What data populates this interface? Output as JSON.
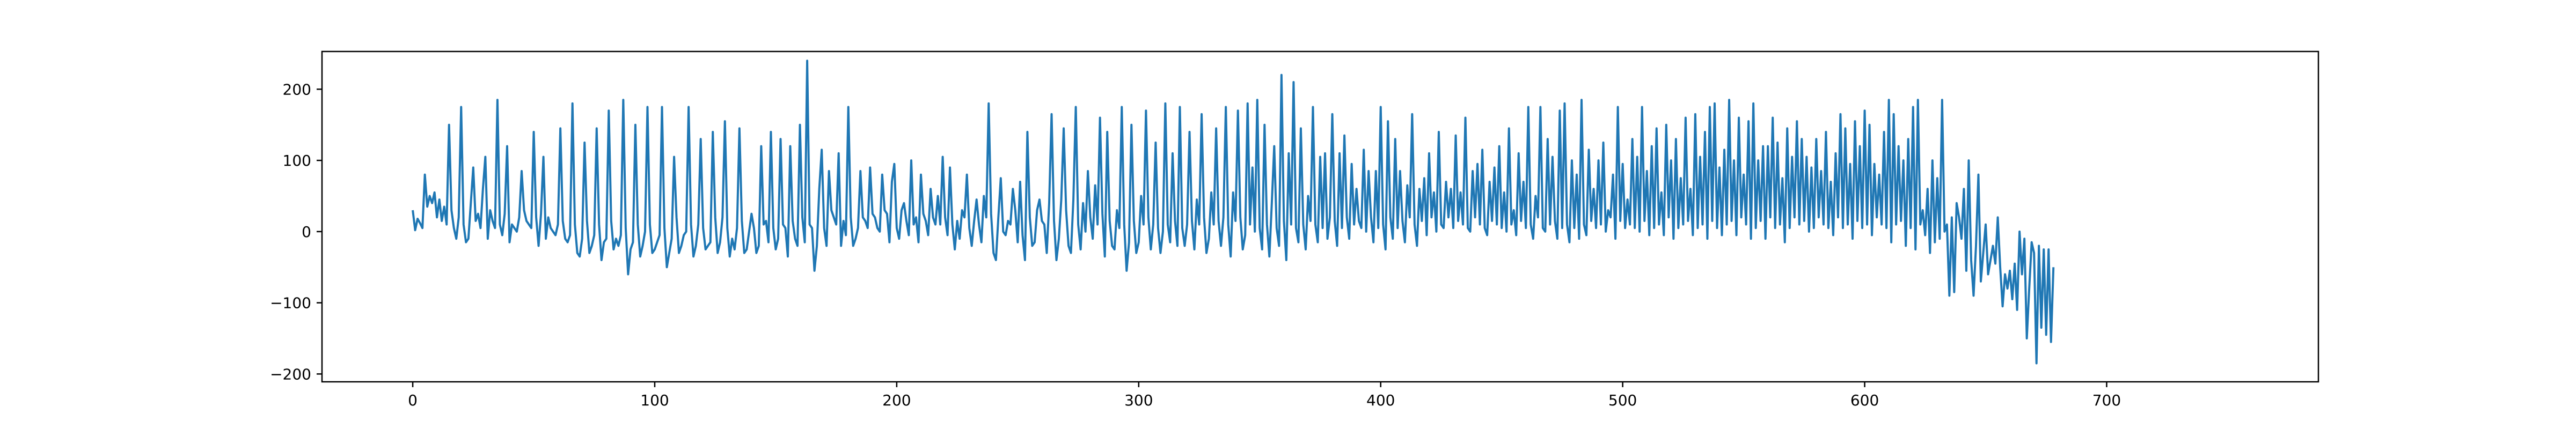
{
  "chart_data": {
    "type": "line",
    "title": "",
    "xlabel": "",
    "ylabel": "",
    "xlim": [
      -37.5,
      787.5
    ],
    "ylim": [
      -211,
      253
    ],
    "grid": false,
    "legend": "none",
    "line_color": "#1f77b4",
    "x_ticks": [
      0,
      100,
      200,
      300,
      400,
      500,
      600,
      700
    ],
    "x_tick_labels": [
      "0",
      "100",
      "200",
      "300",
      "400",
      "500",
      "600",
      "700"
    ],
    "y_ticks": [
      -200,
      -100,
      0,
      100,
      200
    ],
    "y_tick_labels": [
      "−200",
      "−100",
      "0",
      "100",
      "200"
    ],
    "series": [
      {
        "x_start": 0,
        "x_step": 1,
        "values": [
          30,
          2,
          18,
          12,
          5,
          80,
          35,
          50,
          40,
          55,
          20,
          45,
          15,
          35,
          10,
          150,
          30,
          5,
          -10,
          20,
          175,
          10,
          -15,
          -10,
          40,
          90,
          15,
          25,
          5,
          60,
          105,
          -10,
          30,
          15,
          5,
          185,
          10,
          -5,
          25,
          120,
          -15,
          10,
          5,
          0,
          20,
          85,
          30,
          15,
          10,
          5,
          140,
          20,
          -20,
          25,
          105,
          -10,
          20,
          5,
          0,
          -5,
          10,
          145,
          15,
          -10,
          -15,
          -5,
          180,
          10,
          -30,
          -35,
          -10,
          125,
          15,
          -30,
          -20,
          -5,
          145,
          10,
          -40,
          -15,
          -10,
          170,
          15,
          -25,
          -10,
          -20,
          -5,
          185,
          5,
          -60,
          -25,
          -15,
          150,
          10,
          -35,
          -20,
          0,
          175,
          10,
          -30,
          -25,
          -15,
          -5,
          175,
          5,
          -50,
          -30,
          -10,
          105,
          20,
          -30,
          -20,
          -5,
          0,
          175,
          10,
          -35,
          -20,
          10,
          130,
          5,
          -25,
          -20,
          -15,
          140,
          20,
          -30,
          -15,
          20,
          155,
          5,
          -35,
          -10,
          -25,
          5,
          145,
          15,
          -30,
          -25,
          0,
          25,
          5,
          -30,
          -20,
          120,
          10,
          15,
          -15,
          140,
          5,
          -25,
          -10,
          130,
          10,
          5,
          -35,
          120,
          15,
          -10,
          -20,
          150,
          20,
          -15,
          240,
          10,
          5,
          -55,
          -20,
          60,
          115,
          5,
          -20,
          85,
          30,
          20,
          10,
          110,
          -20,
          15,
          -5,
          175,
          20,
          -20,
          -10,
          5,
          85,
          20,
          15,
          5,
          90,
          25,
          20,
          5,
          0,
          80,
          30,
          25,
          -15,
          70,
          95,
          5,
          -10,
          30,
          40,
          15,
          -5,
          100,
          10,
          20,
          -15,
          80,
          25,
          15,
          -5,
          60,
          20,
          10,
          50,
          10,
          105,
          20,
          -5,
          90,
          10,
          -25,
          15,
          -10,
          30,
          20,
          80,
          5,
          -20,
          15,
          45,
          10,
          -15,
          50,
          20,
          180,
          25,
          -30,
          -40,
          20,
          75,
          0,
          -5,
          15,
          10,
          60,
          30,
          -15,
          70,
          -5,
          -40,
          140,
          20,
          -20,
          -15,
          30,
          45,
          15,
          10,
          -30,
          40,
          165,
          15,
          -40,
          -10,
          45,
          145,
          30,
          -20,
          -30,
          45,
          175,
          10,
          -25,
          40,
          0,
          85,
          20,
          -10,
          65,
          10,
          160,
          25,
          -35,
          140,
          15,
          -20,
          -25,
          30,
          5,
          175,
          10,
          -55,
          -15,
          150,
          15,
          -30,
          -15,
          50,
          10,
          170,
          20,
          -25,
          10,
          125,
          5,
          -30,
          0,
          180,
          10,
          -15,
          110,
          15,
          -20,
          175,
          5,
          -20,
          10,
          140,
          15,
          -25,
          45,
          10,
          165,
          20,
          -30,
          -10,
          55,
          10,
          145,
          15,
          -20,
          20,
          175,
          10,
          -35,
          55,
          15,
          170,
          20,
          -25,
          -5,
          180,
          10,
          90,
          0,
          185,
          5,
          -25,
          150,
          10,
          -35,
          40,
          120,
          5,
          -20,
          220,
          15,
          -40,
          110,
          10,
          210,
          5,
          -15,
          145,
          10,
          -25,
          50,
          15,
          175,
          10,
          -15,
          105,
          5,
          110,
          -10,
          20,
          165,
          15,
          -20,
          110,
          5,
          135,
          20,
          -10,
          95,
          10,
          60,
          15,
          5,
          115,
          0,
          85,
          20,
          -15,
          85,
          5,
          175,
          10,
          -25,
          155,
          20,
          -10,
          130,
          5,
          85,
          15,
          -15,
          65,
          20,
          165,
          10,
          -20,
          60,
          15,
          75,
          -5,
          110,
          20,
          55,
          0,
          140,
          10,
          5,
          70,
          20,
          60,
          5,
          135,
          15,
          55,
          10,
          160,
          5,
          0,
          85,
          20,
          95,
          10,
          115,
          5,
          -5,
          70,
          15,
          90,
          10,
          120,
          5,
          55,
          0,
          145,
          10,
          30,
          -5,
          110,
          15,
          70,
          5,
          175,
          10,
          -10,
          50,
          20,
          175,
          5,
          0,
          130,
          10,
          105,
          15,
          -10,
          170,
          5,
          180,
          10,
          -15,
          100,
          5,
          80,
          -10,
          185,
          10,
          -5,
          115,
          15,
          60,
          5,
          100,
          10,
          125,
          0,
          30,
          20,
          80,
          -10,
          175,
          15,
          95,
          5,
          45,
          10,
          130,
          5,
          105,
          0,
          175,
          15,
          85,
          -5,
          120,
          5,
          145,
          10,
          55,
          -5,
          150,
          20,
          100,
          -10,
          130,
          5,
          75,
          10,
          160,
          15,
          60,
          -5,
          165,
          5,
          105,
          10,
          140,
          -10,
          175,
          15,
          180,
          5,
          90,
          -5,
          115,
          10,
          185,
          15,
          100,
          -5,
          160,
          20,
          80,
          10,
          155,
          -10,
          180,
          5,
          100,
          15,
          120,
          -10,
          120,
          20,
          160,
          5,
          125,
          10,
          75,
          -15,
          145,
          5,
          105,
          20,
          155,
          10,
          130,
          15,
          105,
          0,
          90,
          5,
          130,
          20,
          85,
          10,
          140,
          5,
          70,
          -5,
          110,
          20,
          165,
          5,
          145,
          10,
          95,
          -10,
          155,
          15,
          120,
          5,
          170,
          10,
          150,
          -5,
          95,
          20,
          80,
          10,
          140,
          5,
          185,
          -15,
          165,
          10,
          120,
          15,
          100,
          -20,
          130,
          5,
          175,
          -25,
          185,
          10,
          30,
          -5,
          60,
          -30,
          100,
          -15,
          75,
          -10,
          185,
          0,
          10,
          -90,
          20,
          -85,
          40,
          20,
          -10,
          60,
          -55,
          100,
          -40,
          -90,
          -20,
          80,
          -70,
          -30,
          10,
          -60,
          -40,
          -20,
          -45,
          20,
          -50,
          -105,
          -60,
          -80,
          -55,
          -95,
          -45,
          -110,
          0,
          -60,
          -10,
          -150,
          -80,
          -15,
          -30,
          -185,
          -20,
          -135,
          -25,
          -145,
          -25,
          -155,
          -50
        ]
      }
    ]
  }
}
